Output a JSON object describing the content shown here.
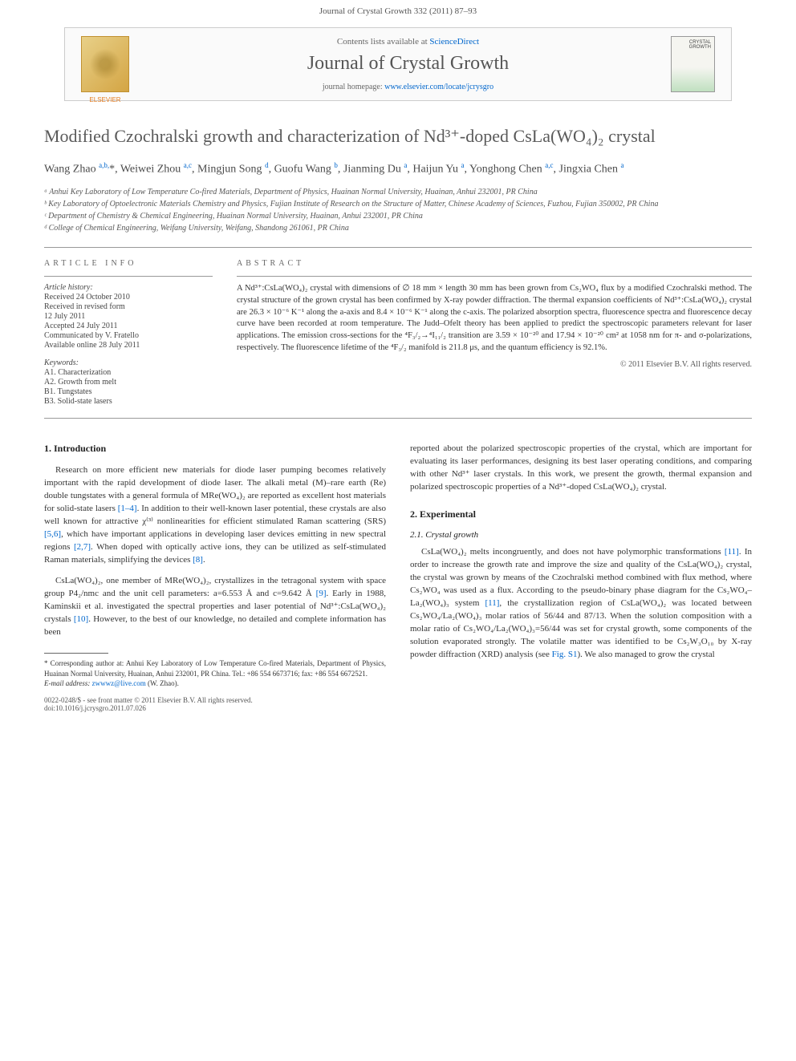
{
  "header": {
    "citation": "Journal of Crystal Growth 332 (2011) 87–93",
    "contents_line": "Contents lists available at ",
    "contents_link": "ScienceDirect",
    "journal_name": "Journal of Crystal Growth",
    "homepage_label": "journal homepage: ",
    "homepage_url": "www.elsevier.com/locate/jcrysgro",
    "cover_text": "CRYSTAL GROWTH",
    "elsevier_name": "ELSEVIER"
  },
  "title": "Modified Czochralski growth and characterization of Nd³⁺-doped CsLa(WO₄)₂ crystal",
  "authors_html": "Wang Zhao <span class='sup'>a,b,</span>*, Weiwei Zhou <span class='sup'>a,c</span>, Mingjun Song <span class='sup'>d</span>, Guofu Wang <span class='sup'>b</span>, Jianming Du <span class='sup'>a</span>, Haijun Yu <span class='sup'>a</span>, Yonghong Chen <span class='sup'>a,c</span>, Jingxia Chen <span class='sup'>a</span>",
  "affiliations": [
    "ᵃ Anhui Key Laboratory of Low Temperature Co-fired Materials, Department of Physics, Huainan Normal University, Huainan, Anhui 232001, PR China",
    "ᵇ Key Laboratory of Optoelectronic Materials Chemistry and Physics, Fujian Institute of Research on the Structure of Matter, Chinese Academy of Sciences, Fuzhou, Fujian 350002, PR China",
    "ᶜ Department of Chemistry & Chemical Engineering, Huainan Normal University, Huainan, Anhui 232001, PR China",
    "ᵈ College of Chemical Engineering, Weifang University, Weifang, Shandong 261061, PR China"
  ],
  "article_info": {
    "heading": "ARTICLE INFO",
    "history_label": "Article history:",
    "history": [
      "Received 24 October 2010",
      "Received in revised form",
      "12 July 2011",
      "Accepted 24 July 2011",
      "Communicated by V. Fratello",
      "Available online 28 July 2011"
    ],
    "keywords_label": "Keywords:",
    "keywords": [
      "A1. Characterization",
      "A2. Growth from melt",
      "B1. Tungstates",
      "B3. Solid-state lasers"
    ]
  },
  "abstract": {
    "heading": "ABSTRACT",
    "text": "A Nd³⁺:CsLa(WO₄)₂ crystal with dimensions of ∅ 18 mm × length 30 mm has been grown from Cs₂WO₄ flux by a modified Czochralski method. The crystal structure of the grown crystal has been confirmed by X-ray powder diffraction. The thermal expansion coefficients of Nd³⁺:CsLa(WO₄)₂ crystal are 26.3 × 10⁻⁶ K⁻¹ along the a-axis and 8.4 × 10⁻⁶ K⁻¹ along the c-axis. The polarized absorption spectra, fluorescence spectra and fluorescence decay curve have been recorded at room temperature. The Judd–Ofelt theory has been applied to predict the spectroscopic parameters relevant for laser applications. The emission cross-sections for the ⁴F₃/₂→⁴I₁₁/₂ transition are 3.59 × 10⁻²⁰ and 17.94 × 10⁻²⁰ cm² at 1058 nm for π- and σ-polarizations, respectively. The fluorescence lifetime of the ⁴F₃/₂ manifold is 211.8 μs, and the quantum efficiency is 92.1%.",
    "copyright": "© 2011 Elsevier B.V. All rights reserved."
  },
  "body": {
    "sec1_heading": "1. Introduction",
    "sec1_p1": "Research on more efficient new materials for diode laser pumping becomes relatively important with the rapid development of diode laser. The alkali metal (M)–rare earth (Re) double tungstates with a general formula of MRe(WO₄)₂ are reported as excellent host materials for solid-state lasers [1–4]. In addition to their well-known laser potential, these crystals are also well known for attractive χ⁽³⁾ nonlinearities for efficient stimulated Raman scattering (SRS) [5,6], which have important applications in developing laser devices emitting in new spectral regions [2,7]. When doped with optically active ions, they can be utilized as self-stimulated Raman materials, simplifying the devices [8].",
    "sec1_p2": "CsLa(WO₄)₂, one member of MRe(WO₄)₂, crystallizes in the tetragonal system with space group P4₂/nmc and the unit cell parameters: a=6.553 Å and c=9.642 Å [9]. Early in 1988, Kaminskii et al. investigated the spectral properties and laser potential of Nd³⁺:CsLa(WO₄)₂ crystals [10]. However, to the best of our knowledge, no detailed and complete information has been",
    "sec1_p3_right": "reported about the polarized spectroscopic properties of the crystal, which are important for evaluating its laser performances, designing its best laser operating conditions, and comparing with other Nd³⁺ laser crystals. In this work, we present the growth, thermal expansion and polarized spectroscopic properties of a Nd³⁺-doped CsLa(WO₄)₂ crystal.",
    "sec2_heading": "2. Experimental",
    "sec21_heading": "2.1. Crystal growth",
    "sec21_p1": "CsLa(WO₄)₂ melts incongruently, and does not have polymorphic transformations [11]. In order to increase the growth rate and improve the size and quality of the CsLa(WO₄)₂ crystal, the crystal was grown by means of the Czochralski method combined with flux method, where Cs₂WO₄ was used as a flux. According to the pseudo-binary phase diagram for the Cs₂WO₄–La₂(WO₄)₃ system [11], the crystallization region of CsLa(WO₄)₂ was located between Cs₂WO₄/La₂(WO₄)₃ molar ratios of 56/44 and 87/13. When the solution composition with a molar ratio of Cs₂WO₄/La₂(WO₄)₃=56/44 was set for crystal growth, some components of the solution evaporated strongly. The volatile matter was identified to be Cs₂W₃O₁₀ by X-ray powder diffraction (XRD) analysis (see Fig. S1). We also managed to grow the crystal"
  },
  "footnote": {
    "corr": "* Corresponding author at: Anhui Key Laboratory of Low Temperature Co-fired Materials, Department of Physics, Huainan Normal University, Huainan, Anhui 232001, PR China. Tel.: +86 554 6673716; fax: +86 554 6672521.",
    "email_label": "E-mail address: ",
    "email": "zwwwz@live.com",
    "email_who": " (W. Zhao)."
  },
  "doi": {
    "line1": "0022-0248/$ - see front matter © 2011 Elsevier B.V. All rights reserved.",
    "line2": "doi:10.1016/j.jcrysgro.2011.07.026"
  },
  "links": {
    "ref_style": "#0066cc"
  }
}
